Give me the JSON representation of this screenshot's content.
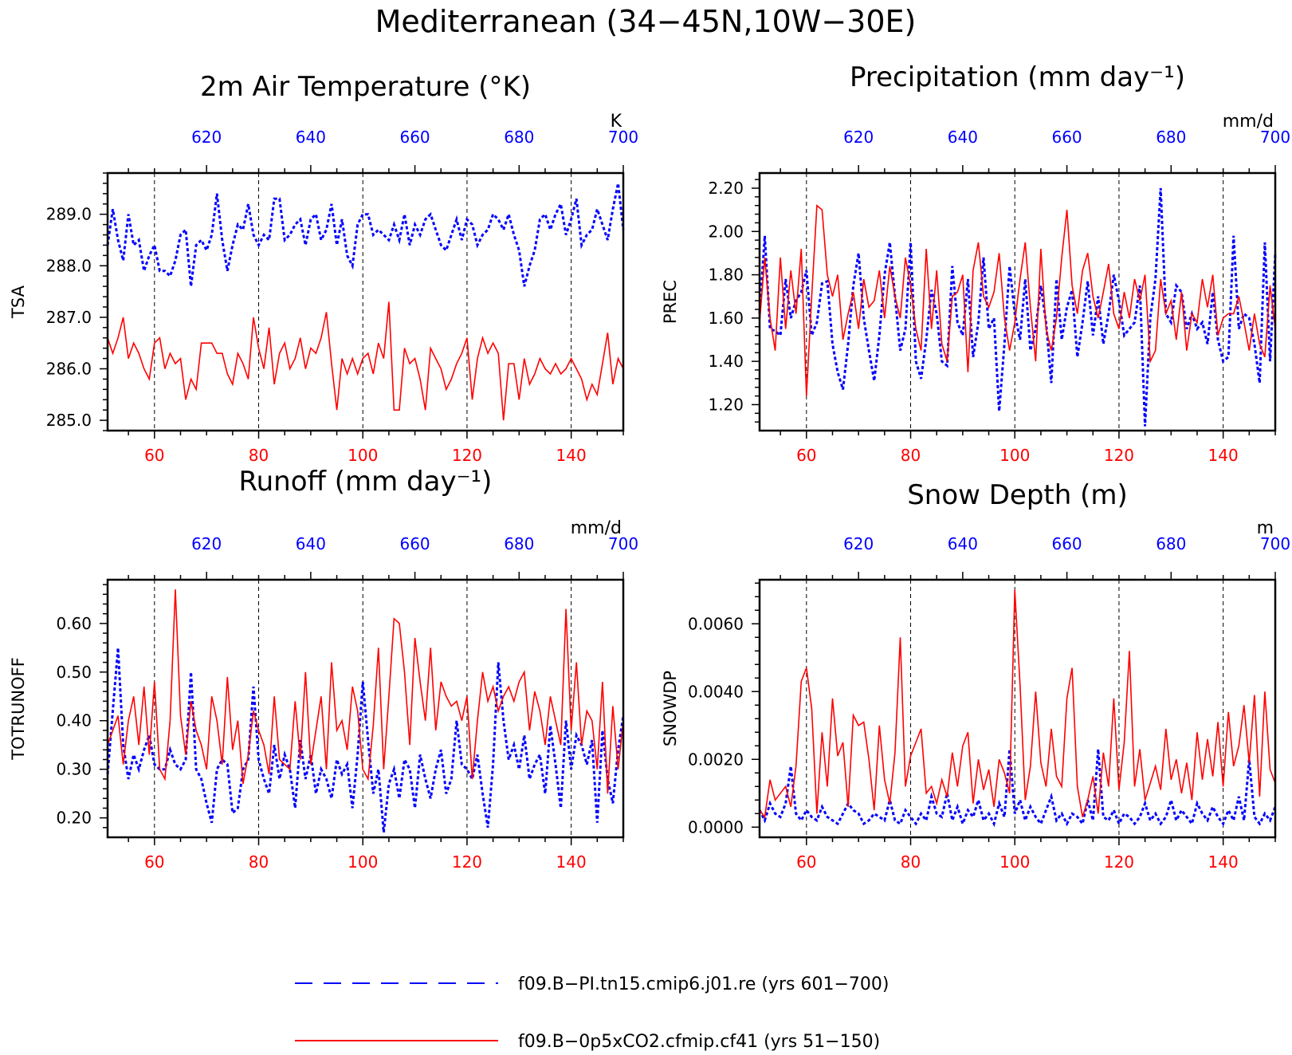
{
  "figure_title": "Mediterranean (34−45N,10W−30E)",
  "colors": {
    "top_axis": "#0000ff",
    "bottom_axis": "#ff0000",
    "series_pi": "#0000ff",
    "series_co2": "#ff0000"
  },
  "legend": [
    {
      "label": "f09.B−PI.tn15.cmip6.j01.re (yrs 601−700)",
      "style": "dashed",
      "color": "#0000ff"
    },
    {
      "label": "f09.B−0p5xCO2.cfmip.cf41 (yrs 51−150)",
      "style": "solid",
      "color": "#ff0000"
    }
  ],
  "chart_data": [
    {
      "type": "line",
      "title": "2m Air Temperature (°K)",
      "ylabel": "TSA",
      "units": "K",
      "xlim_bottom": [
        51,
        150
      ],
      "xlim_top": [
        601,
        700
      ],
      "xticks_bottom": [
        "60",
        "80",
        "100",
        "120",
        "140"
      ],
      "xticks_top": [
        "620",
        "640",
        "660",
        "680",
        "700"
      ],
      "ylim": [
        284.8,
        289.8
      ],
      "yticks": [
        "285.0",
        "286.0",
        "287.0",
        "288.0",
        "289.0"
      ],
      "ytick_values": [
        285.0,
        286.0,
        287.0,
        288.0,
        289.0
      ],
      "series": [
        {
          "name": "f09.B−PI.tn15.cmip6.j01.re (yrs 601−700)",
          "axis": "top",
          "values": [
            288.4,
            289.1,
            288.5,
            288.1,
            289.0,
            288.4,
            288.5,
            287.9,
            288.2,
            288.4,
            287.9,
            287.9,
            287.8,
            288.1,
            288.6,
            288.7,
            287.6,
            288.4,
            288.5,
            288.3,
            288.6,
            289.4,
            288.5,
            287.9,
            288.4,
            288.8,
            288.7,
            289.2,
            288.6,
            288.4,
            288.6,
            288.5,
            289.3,
            289.3,
            288.5,
            288.6,
            288.8,
            288.9,
            288.4,
            288.9,
            289.0,
            288.5,
            288.7,
            289.2,
            288.4,
            288.9,
            288.2,
            288.0,
            288.8,
            289.0,
            289.0,
            288.6,
            288.7,
            288.6,
            288.5,
            288.8,
            288.5,
            289.0,
            288.4,
            288.8,
            288.6,
            288.9,
            289.0,
            288.7,
            288.4,
            288.3,
            288.6,
            288.9,
            288.5,
            288.9,
            288.8,
            288.4,
            288.6,
            288.7,
            289.0,
            288.9,
            288.7,
            289.0,
            288.6,
            288.3,
            287.6,
            288.0,
            288.3,
            288.9,
            289.0,
            288.7,
            289.0,
            289.2,
            288.6,
            288.9,
            289.3,
            288.4,
            288.6,
            288.7,
            289.1,
            288.8,
            288.5,
            289.1,
            289.6,
            288.7
          ]
        },
        {
          "name": "f09.B−0p5xCO2.cfmip.cf41 (yrs 51−150)",
          "axis": "bottom",
          "values": [
            286.6,
            286.3,
            286.6,
            287.0,
            286.2,
            286.5,
            286.3,
            286.0,
            285.8,
            286.5,
            286.6,
            286.0,
            286.3,
            286.1,
            286.2,
            285.4,
            285.8,
            285.6,
            286.5,
            286.5,
            286.5,
            286.3,
            286.3,
            285.9,
            285.7,
            286.3,
            286.1,
            285.8,
            287.0,
            286.4,
            286.0,
            286.8,
            285.7,
            286.3,
            286.5,
            286.0,
            286.2,
            286.6,
            286.0,
            286.4,
            286.3,
            286.6,
            287.1,
            286.1,
            285.2,
            286.2,
            285.9,
            286.2,
            285.9,
            286.2,
            286.3,
            285.9,
            286.5,
            286.2,
            287.3,
            285.2,
            285.2,
            286.4,
            286.1,
            286.2,
            285.8,
            285.2,
            286.4,
            286.2,
            286.0,
            285.6,
            285.8,
            286.1,
            286.3,
            286.6,
            285.4,
            286.2,
            286.6,
            286.3,
            286.5,
            286.3,
            285.0,
            286.1,
            286.1,
            285.4,
            286.2,
            285.7,
            285.9,
            286.2,
            286.0,
            285.9,
            286.1,
            285.9,
            286.0,
            286.2,
            286.0,
            285.8,
            285.4,
            285.7,
            285.5,
            286.1,
            286.7,
            285.7,
            286.2,
            286.0
          ]
        }
      ]
    },
    {
      "type": "line",
      "title": "Precipitation (mm day⁻¹)",
      "ylabel": "PREC",
      "units": "mm/d",
      "xlim_bottom": [
        51,
        150
      ],
      "xlim_top": [
        601,
        700
      ],
      "xticks_bottom": [
        "60",
        "80",
        "100",
        "120",
        "140"
      ],
      "xticks_top": [
        "620",
        "640",
        "660",
        "680",
        "700"
      ],
      "ylim": [
        1.08,
        2.27
      ],
      "yticks": [
        "1.20",
        "1.40",
        "1.60",
        "1.80",
        "2.00",
        "2.20"
      ],
      "ytick_values": [
        1.2,
        1.4,
        1.6,
        1.8,
        2.0,
        2.2
      ],
      "series": [
        {
          "name": "f09.B−PI.tn15.cmip6.j01.re (yrs 601−700)",
          "axis": "top",
          "values": [
            1.62,
            1.98,
            1.55,
            1.54,
            1.52,
            1.78,
            1.6,
            1.68,
            1.72,
            1.82,
            1.52,
            1.58,
            1.76,
            1.77,
            1.48,
            1.35,
            1.27,
            1.48,
            1.75,
            1.9,
            1.6,
            1.45,
            1.31,
            1.52,
            1.8,
            1.95,
            1.7,
            1.45,
            1.55,
            1.95,
            1.4,
            1.32,
            1.5,
            1.73,
            1.62,
            1.4,
            1.38,
            1.84,
            1.58,
            1.52,
            1.78,
            1.42,
            1.58,
            1.88,
            1.55,
            1.6,
            1.17,
            1.48,
            1.84,
            1.62,
            1.5,
            1.78,
            1.45,
            1.55,
            1.75,
            1.58,
            1.3,
            1.78,
            1.5,
            1.65,
            1.73,
            1.42,
            1.58,
            1.77,
            1.52,
            1.7,
            1.48,
            1.62,
            1.8,
            1.68,
            1.52,
            1.55,
            1.58,
            1.75,
            1.1,
            1.6,
            1.78,
            2.2,
            1.62,
            1.58,
            1.75,
            1.72,
            1.55,
            1.62,
            1.55,
            1.58,
            1.48,
            1.72,
            1.5,
            1.4,
            1.42,
            1.98,
            1.55,
            1.62,
            1.6,
            1.48,
            1.3,
            1.95,
            1.4,
            1.9
          ]
        },
        {
          "name": "f09.B−0p5xCO2.cfmip.cf41 (yrs 51−150)",
          "axis": "bottom",
          "values": [
            1.58,
            1.88,
            1.6,
            1.45,
            1.88,
            1.55,
            1.82,
            1.62,
            1.92,
            1.24,
            1.7,
            2.12,
            2.1,
            1.8,
            1.7,
            1.8,
            1.5,
            1.62,
            1.72,
            1.55,
            1.78,
            1.65,
            1.68,
            1.82,
            1.6,
            1.84,
            1.7,
            1.6,
            1.88,
            1.75,
            1.55,
            1.45,
            1.92,
            1.55,
            1.82,
            1.48,
            1.4,
            1.7,
            1.72,
            1.8,
            1.35,
            1.82,
            1.95,
            1.7,
            1.65,
            1.72,
            1.9,
            1.6,
            1.45,
            1.58,
            1.78,
            1.95,
            1.65,
            1.4,
            1.92,
            1.55,
            1.45,
            1.6,
            1.88,
            2.1,
            1.75,
            1.62,
            1.82,
            1.9,
            1.7,
            1.6,
            1.72,
            1.85,
            1.62,
            1.55,
            1.72,
            1.6,
            1.78,
            1.68,
            1.8,
            1.4,
            1.45,
            1.78,
            1.62,
            1.68,
            1.5,
            1.72,
            1.45,
            1.62,
            1.58,
            1.78,
            1.65,
            1.8,
            1.52,
            1.6,
            1.62,
            1.62,
            1.7,
            1.58,
            1.45,
            1.62,
            1.48,
            1.42,
            1.75,
            1.55
          ]
        }
      ]
    },
    {
      "type": "line",
      "title": "Runoff (mm day⁻¹)",
      "ylabel": "TOTRUNOFF",
      "units": "mm/d",
      "xlim_bottom": [
        51,
        150
      ],
      "xlim_top": [
        601,
        700
      ],
      "xticks_bottom": [
        "60",
        "80",
        "100",
        "120",
        "140"
      ],
      "xticks_top": [
        "620",
        "640",
        "660",
        "680",
        "700"
      ],
      "ylim": [
        0.16,
        0.69
      ],
      "yticks": [
        "0.20",
        "0.30",
        "0.40",
        "0.50",
        "0.60"
      ],
      "ytick_values": [
        0.2,
        0.3,
        0.4,
        0.5,
        0.6
      ],
      "series": [
        {
          "name": "f09.B−PI.tn15.cmip6.j01.re (yrs 601−700)",
          "axis": "top",
          "values": [
            0.29,
            0.42,
            0.55,
            0.35,
            0.28,
            0.33,
            0.3,
            0.34,
            0.37,
            0.31,
            0.3,
            0.3,
            0.34,
            0.31,
            0.3,
            0.32,
            0.5,
            0.3,
            0.28,
            0.23,
            0.19,
            0.3,
            0.32,
            0.31,
            0.21,
            0.22,
            0.3,
            0.32,
            0.47,
            0.32,
            0.28,
            0.25,
            0.35,
            0.28,
            0.33,
            0.3,
            0.22,
            0.36,
            0.28,
            0.33,
            0.25,
            0.3,
            0.28,
            0.24,
            0.32,
            0.29,
            0.31,
            0.22,
            0.33,
            0.48,
            0.36,
            0.25,
            0.3,
            0.17,
            0.27,
            0.3,
            0.24,
            0.32,
            0.3,
            0.22,
            0.33,
            0.28,
            0.24,
            0.3,
            0.34,
            0.25,
            0.28,
            0.4,
            0.31,
            0.3,
            0.28,
            0.33,
            0.25,
            0.18,
            0.31,
            0.52,
            0.4,
            0.32,
            0.35,
            0.3,
            0.37,
            0.28,
            0.31,
            0.33,
            0.25,
            0.39,
            0.31,
            0.22,
            0.4,
            0.3,
            0.37,
            0.35,
            0.31,
            0.36,
            0.19,
            0.38,
            0.28,
            0.23,
            0.34,
            0.41
          ]
        },
        {
          "name": "f09.B−0p5xCO2.cfmip.cf41 (yrs 51−150)",
          "axis": "bottom",
          "values": [
            0.35,
            0.38,
            0.41,
            0.31,
            0.4,
            0.45,
            0.35,
            0.47,
            0.33,
            0.48,
            0.3,
            0.28,
            0.4,
            0.67,
            0.41,
            0.33,
            0.44,
            0.38,
            0.35,
            0.3,
            0.45,
            0.4,
            0.31,
            0.49,
            0.34,
            0.4,
            0.27,
            0.33,
            0.42,
            0.38,
            0.35,
            0.29,
            0.45,
            0.32,
            0.31,
            0.3,
            0.44,
            0.32,
            0.5,
            0.31,
            0.38,
            0.45,
            0.3,
            0.52,
            0.38,
            0.4,
            0.34,
            0.47,
            0.42,
            0.3,
            0.28,
            0.39,
            0.55,
            0.3,
            0.45,
            0.61,
            0.6,
            0.5,
            0.35,
            0.57,
            0.48,
            0.4,
            0.55,
            0.38,
            0.48,
            0.45,
            0.43,
            0.44,
            0.4,
            0.45,
            0.28,
            0.4,
            0.5,
            0.44,
            0.47,
            0.42,
            0.45,
            0.47,
            0.44,
            0.48,
            0.5,
            0.38,
            0.46,
            0.42,
            0.35,
            0.45,
            0.4,
            0.35,
            0.63,
            0.38,
            0.52,
            0.35,
            0.42,
            0.4,
            0.3,
            0.48,
            0.25,
            0.43,
            0.3,
            0.4
          ]
        }
      ]
    },
    {
      "type": "line",
      "title": "Snow Depth (m)",
      "ylabel": "SNOWDP",
      "units": "m",
      "xlim_bottom": [
        51,
        150
      ],
      "xlim_top": [
        601,
        700
      ],
      "xticks_bottom": [
        "60",
        "80",
        "100",
        "120",
        "140"
      ],
      "xticks_top": [
        "620",
        "640",
        "660",
        "680",
        "700"
      ],
      "ylim": [
        -0.0003,
        0.0073
      ],
      "yticks": [
        "0.0000",
        "0.0020",
        "0.0040",
        "0.0060"
      ],
      "ytick_values": [
        0.0,
        0.002,
        0.004,
        0.006
      ],
      "series": [
        {
          "name": "f09.B−PI.tn15.cmip6.j01.re (yrs 601−700)",
          "axis": "top",
          "values": [
            0.0005,
            0.0002,
            0.0007,
            0.0004,
            0.0003,
            0.0007,
            0.0018,
            0.0004,
            0.0002,
            0.0005,
            0.0003,
            0.0002,
            0.0006,
            0.0003,
            0.0002,
            0.0001,
            0.0004,
            0.0007,
            0.0005,
            0.0004,
            0.0001,
            0.0002,
            0.0004,
            0.0003,
            0.0002,
            0.0008,
            0.0002,
            0.0001,
            0.0005,
            0.0003,
            0.0001,
            0.0004,
            0.0002,
            0.0009,
            0.0004,
            0.0003,
            0.001,
            0.0002,
            0.0006,
            0.0001,
            0.0005,
            0.0003,
            0.0008,
            0.0002,
            0.0004,
            0.0001,
            0.0007,
            0.0003,
            0.0023,
            0.0004,
            0.0008,
            0.0002,
            0.0006,
            0.0003,
            0.0001,
            0.0005,
            0.0009,
            0.0002,
            0.0004,
            0.0001,
            0.0004,
            0.0003,
            0.0001,
            0.0008,
            0.0002,
            0.0023,
            0.0003,
            0.0002,
            0.0005,
            0.0001,
            0.0004,
            0.0003,
            0.0001,
            0.0003,
            0.0007,
            0.0002,
            0.0004,
            0.0001,
            0.0003,
            0.0008,
            0.0002,
            0.0005,
            0.0003,
            0.0001,
            0.0007,
            0.0004,
            0.0002,
            0.0006,
            0.0003,
            0.0001,
            0.0005,
            0.0002,
            0.0009,
            0.0002,
            0.002,
            0.0003,
            0.0001,
            0.0004,
            0.0002,
            0.0006
          ]
        },
        {
          "name": "f09.B−0p5xCO2.cfmip.cf41 (yrs 51−150)",
          "axis": "bottom",
          "values": [
            0.0005,
            0.0003,
            0.0014,
            0.0008,
            0.001,
            0.0012,
            0.0006,
            0.0018,
            0.0043,
            0.0047,
            0.0035,
            0.0004,
            0.0028,
            0.0012,
            0.0038,
            0.0021,
            0.0025,
            0.0006,
            0.0033,
            0.003,
            0.0031,
            0.002,
            0.0005,
            0.003,
            0.0014,
            0.0007,
            0.0022,
            0.0056,
            0.0012,
            0.0021,
            0.0025,
            0.0029,
            0.001,
            0.0012,
            0.0007,
            0.0014,
            0.0009,
            0.0022,
            0.0012,
            0.0024,
            0.0028,
            0.0007,
            0.002,
            0.0011,
            0.0017,
            0.0006,
            0.002,
            0.0016,
            0.001,
            0.007,
            0.0042,
            0.0008,
            0.0018,
            0.004,
            0.0019,
            0.0012,
            0.0029,
            0.0015,
            0.0012,
            0.0038,
            0.0047,
            0.0012,
            0.0003,
            0.0008,
            0.0015,
            0.0004,
            0.0022,
            0.0012,
            0.0038,
            0.0011,
            0.0025,
            0.0052,
            0.0012,
            0.0023,
            0.0008,
            0.0013,
            0.0018,
            0.0011,
            0.0029,
            0.0014,
            0.002,
            0.001,
            0.0019,
            0.0008,
            0.0028,
            0.0014,
            0.0026,
            0.0015,
            0.0031,
            0.0012,
            0.0034,
            0.0018,
            0.0024,
            0.0036,
            0.0019,
            0.0039,
            0.0009,
            0.004,
            0.0017,
            0.0013
          ]
        }
      ]
    }
  ]
}
